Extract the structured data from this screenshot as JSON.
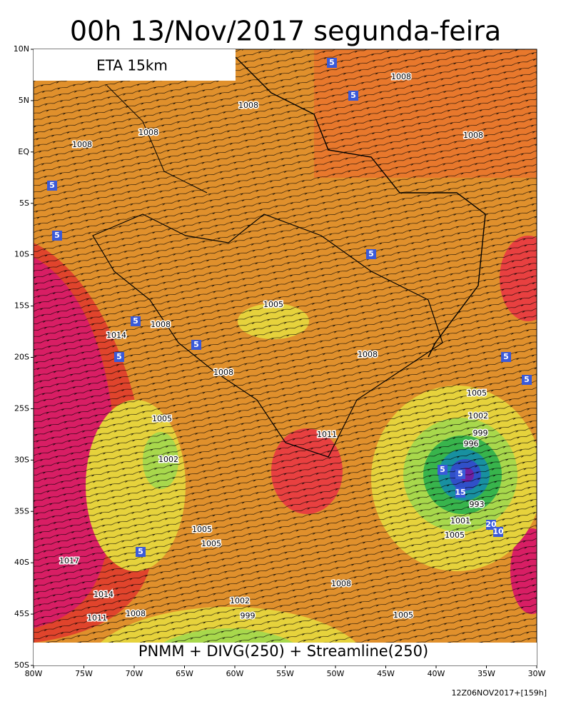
{
  "title": "00h 13/Nov/2017 segunda-feira",
  "model": "ETA 15km",
  "fields": "PNMM + DIVG(250) + Streamline(250)",
  "run": "12Z06NOV2017+[159h]",
  "lat_ticks": [
    {
      "value": 10,
      "label": "10N"
    },
    {
      "value": 5,
      "label": "5N"
    },
    {
      "value": 0,
      "label": "EQ"
    },
    {
      "value": -5,
      "label": "5S"
    },
    {
      "value": -10,
      "label": "10S"
    },
    {
      "value": -15,
      "label": "15S"
    },
    {
      "value": -20,
      "label": "20S"
    },
    {
      "value": -25,
      "label": "25S"
    },
    {
      "value": -30,
      "label": "30S"
    },
    {
      "value": -35,
      "label": "35S"
    },
    {
      "value": -40,
      "label": "40S"
    },
    {
      "value": -45,
      "label": "45S"
    },
    {
      "value": -50,
      "label": "50S"
    }
  ],
  "lon_ticks": [
    {
      "value": -80,
      "label": "80W"
    },
    {
      "value": -75,
      "label": "75W"
    },
    {
      "value": -70,
      "label": "70W"
    },
    {
      "value": -65,
      "label": "65W"
    },
    {
      "value": -60,
      "label": "60W"
    },
    {
      "value": -55,
      "label": "55W"
    },
    {
      "value": -50,
      "label": "50W"
    },
    {
      "value": -45,
      "label": "45W"
    },
    {
      "value": -40,
      "label": "40W"
    },
    {
      "value": -35,
      "label": "35W"
    },
    {
      "value": -30,
      "label": "30W"
    }
  ],
  "pressure_labels": [
    1008,
    1008,
    1008,
    1008,
    1008,
    1005,
    1008,
    1014,
    1008,
    1008,
    1005,
    1005,
    1002,
    1011,
    999,
    996,
    1002,
    993,
    1001,
    1005,
    1005,
    1005,
    1017,
    1008,
    1014,
    1002,
    999,
    1005,
    1011,
    1008
  ],
  "divergence_labels": [
    5,
    5,
    5,
    5,
    5,
    5,
    5,
    5,
    5,
    5,
    5,
    5,
    15,
    20,
    10,
    5
  ]
}
